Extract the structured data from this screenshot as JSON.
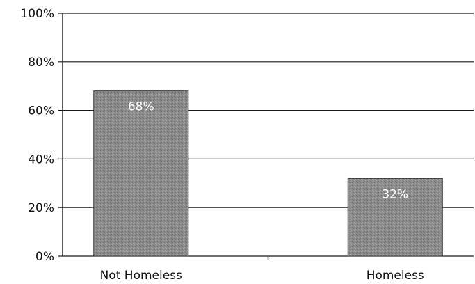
{
  "chart_data": {
    "type": "bar",
    "categories": [
      "Not Homeless",
      "Homeless"
    ],
    "values": [
      68,
      32
    ],
    "data_labels": [
      "68%",
      "32%"
    ],
    "ylim": [
      0,
      100
    ],
    "y_ticks": [
      0,
      20,
      40,
      60,
      80,
      100
    ],
    "y_tick_labels": [
      "0%",
      "20%",
      "40%",
      "60%",
      "80%",
      "100%"
    ],
    "grid": true,
    "legend": "none"
  },
  "colors": {
    "bar_fill": "#8c8c8c",
    "bar_texture": "#6e6e6e",
    "grid": "#1a1a1a",
    "data_label": "#ffffff"
  }
}
